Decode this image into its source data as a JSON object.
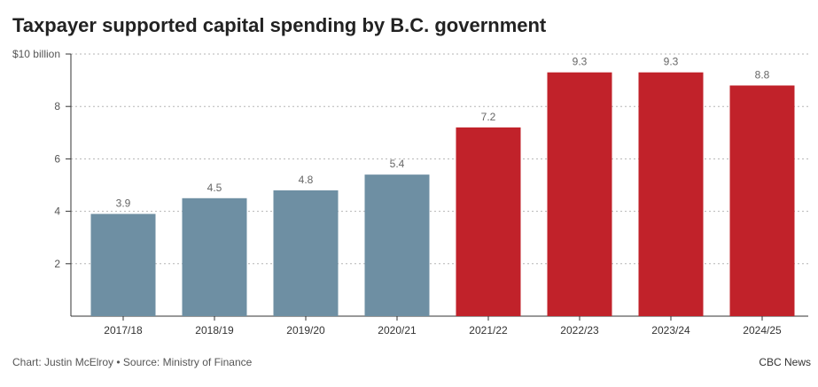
{
  "chart_data": {
    "type": "bar",
    "title": "Taxpayer supported capital spending by B.C. government",
    "categories": [
      "2017/18",
      "2018/19",
      "2019/20",
      "2020/21",
      "2021/22",
      "2022/23",
      "2023/24",
      "2024/25"
    ],
    "values": [
      3.9,
      4.5,
      4.8,
      5.4,
      7.2,
      9.3,
      9.3,
      8.8
    ],
    "value_labels": [
      "3.9",
      "4.5",
      "4.8",
      "5.4",
      "7.2",
      "9.3",
      "9.3",
      "8.8"
    ],
    "bar_colors": [
      "#6e8fa3",
      "#6e8fa3",
      "#6e8fa3",
      "#6e8fa3",
      "#c1222a",
      "#c1222a",
      "#c1222a",
      "#c1222a"
    ],
    "yticks": [
      2,
      4,
      6,
      8,
      10
    ],
    "ytick_labels": [
      "2",
      "4",
      "6",
      "8",
      "$10 billion"
    ],
    "ylim": [
      0,
      10
    ],
    "xlabel": "",
    "ylabel": "",
    "grid": true
  },
  "footer": {
    "credit": "Chart: Justin McElroy • Source: Ministry of Finance",
    "brand": "CBC News"
  }
}
